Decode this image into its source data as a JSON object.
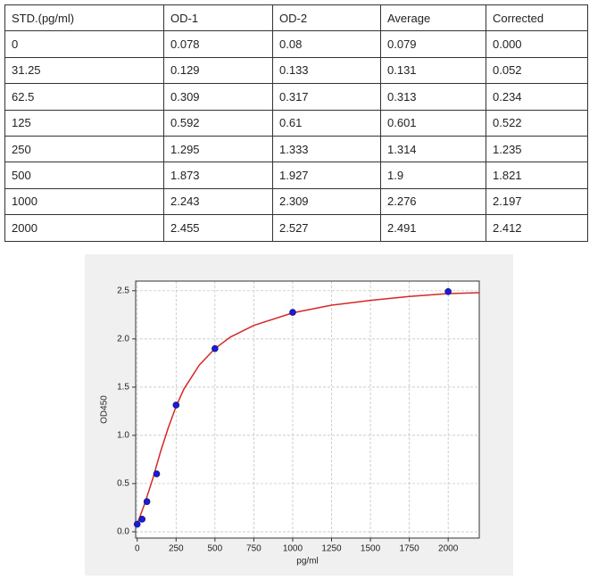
{
  "table": {
    "header": [
      "STD.(pg/ml)",
      "OD-1",
      "OD-2",
      "Average",
      "Corrected"
    ],
    "rows": [
      [
        "0",
        "0.078",
        "0.08",
        "0.079",
        "0.000"
      ],
      [
        "31.25",
        "0.129",
        "0.133",
        "0.131",
        "0.052"
      ],
      [
        "62.5",
        "0.309",
        "0.317",
        "0.313",
        "0.234"
      ],
      [
        "125",
        "0.592",
        "0.61",
        "0.601",
        "0.522"
      ],
      [
        "250",
        "1.295",
        "1.333",
        "1.314",
        "1.235"
      ],
      [
        "500",
        "1.873",
        "1.927",
        "1.9",
        "1.821"
      ],
      [
        "1000",
        "2.243",
        "2.309",
        "2.276",
        "2.197"
      ],
      [
        "2000",
        "2.455",
        "2.527",
        "2.491",
        "2.412"
      ]
    ]
  },
  "chart_data": {
    "type": "scatter",
    "x_label": "pg/ml",
    "y_label": "OD450",
    "points": {
      "color": "#1a1adb",
      "x": [
        0,
        31.25,
        62.5,
        125,
        250,
        500,
        1000,
        2000
      ],
      "y": [
        0.079,
        0.131,
        0.313,
        0.601,
        1.314,
        1.9,
        2.276,
        2.491
      ]
    },
    "curve": {
      "color": "#d62728",
      "x": [
        0,
        50,
        100,
        150,
        200,
        250,
        300,
        400,
        500,
        600,
        750,
        1000,
        1250,
        1500,
        1750,
        2000,
        2200
      ],
      "y": [
        0.08,
        0.3,
        0.55,
        0.83,
        1.08,
        1.3,
        1.48,
        1.73,
        1.9,
        2.02,
        2.14,
        2.27,
        2.35,
        2.4,
        2.44,
        2.47,
        2.48
      ]
    },
    "xlim": [
      -10,
      2200
    ],
    "ylim": [
      -0.065,
      2.6
    ],
    "xticks": [
      0,
      250,
      500,
      750,
      1000,
      1250,
      1500,
      1750,
      2000
    ],
    "yticks": [
      {
        "value": 0,
        "label": "0.0"
      },
      {
        "value": 0.5,
        "label": "0.5"
      },
      {
        "value": 1,
        "label": "1.0"
      },
      {
        "value": 1.5,
        "label": "1.5"
      },
      {
        "value": 2,
        "label": "2.0"
      },
      {
        "value": 2.5,
        "label": "2.5"
      }
    ],
    "grid": true
  }
}
